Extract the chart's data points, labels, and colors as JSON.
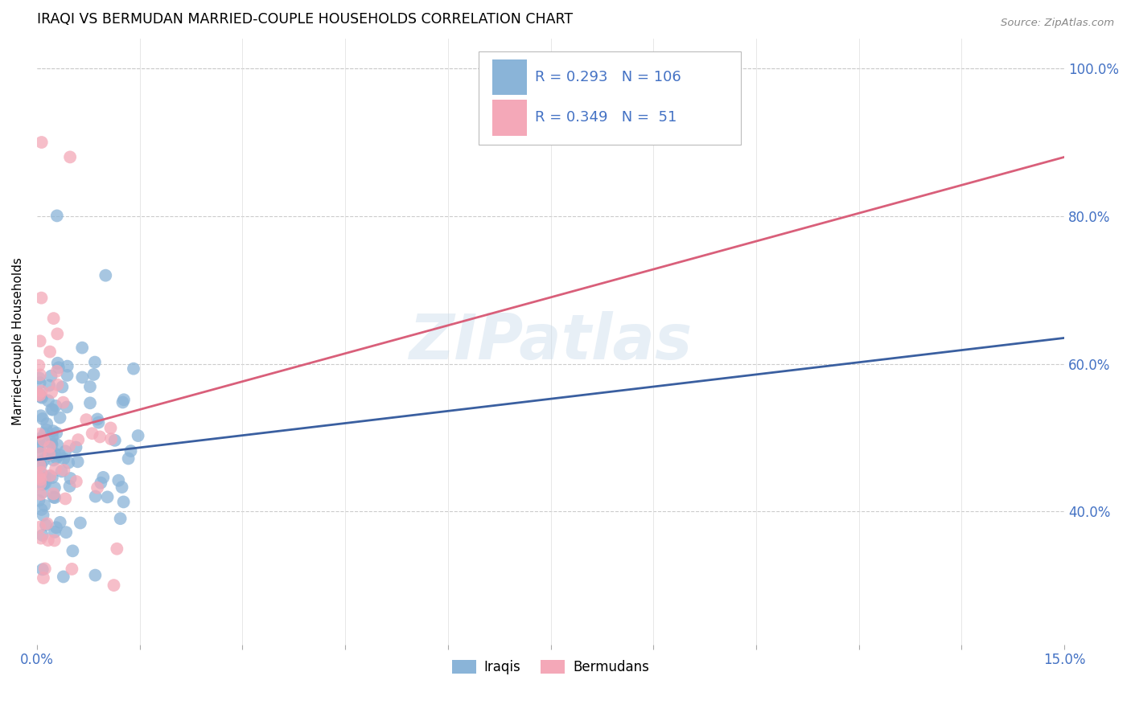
{
  "title": "IRAQI VS BERMUDAN MARRIED-COUPLE HOUSEHOLDS CORRELATION CHART",
  "source": "Source: ZipAtlas.com",
  "ylabel": "Married-couple Households",
  "xmin": 0.0,
  "xmax": 0.15,
  "ymin": 0.22,
  "ymax": 1.04,
  "y_ticks": [
    0.4,
    0.6,
    0.8,
    1.0
  ],
  "y_tick_labels": [
    "40.0%",
    "60.0%",
    "80.0%",
    "100.0%"
  ],
  "watermark": "ZIPatlas",
  "legend_r1": "0.293",
  "legend_n1": "106",
  "legend_r2": "0.349",
  "legend_n2": "51",
  "legend_label1": "Iraqis",
  "legend_label2": "Bermudans",
  "color_iraqi": "#8ab4d8",
  "color_bermudan": "#f4a8b8",
  "color_line_iraqi": "#3a5fa0",
  "color_line_bermudan": "#d95f7a",
  "color_text_blue": "#4472c4",
  "background_color": "#ffffff",
  "line_iraqi_x0": 0.0,
  "line_iraqi_y0": 0.47,
  "line_iraqi_x1": 0.15,
  "line_iraqi_y1": 0.635,
  "line_berm_x0": 0.0,
  "line_berm_y0": 0.5,
  "line_berm_x1": 0.15,
  "line_berm_y1": 0.88
}
